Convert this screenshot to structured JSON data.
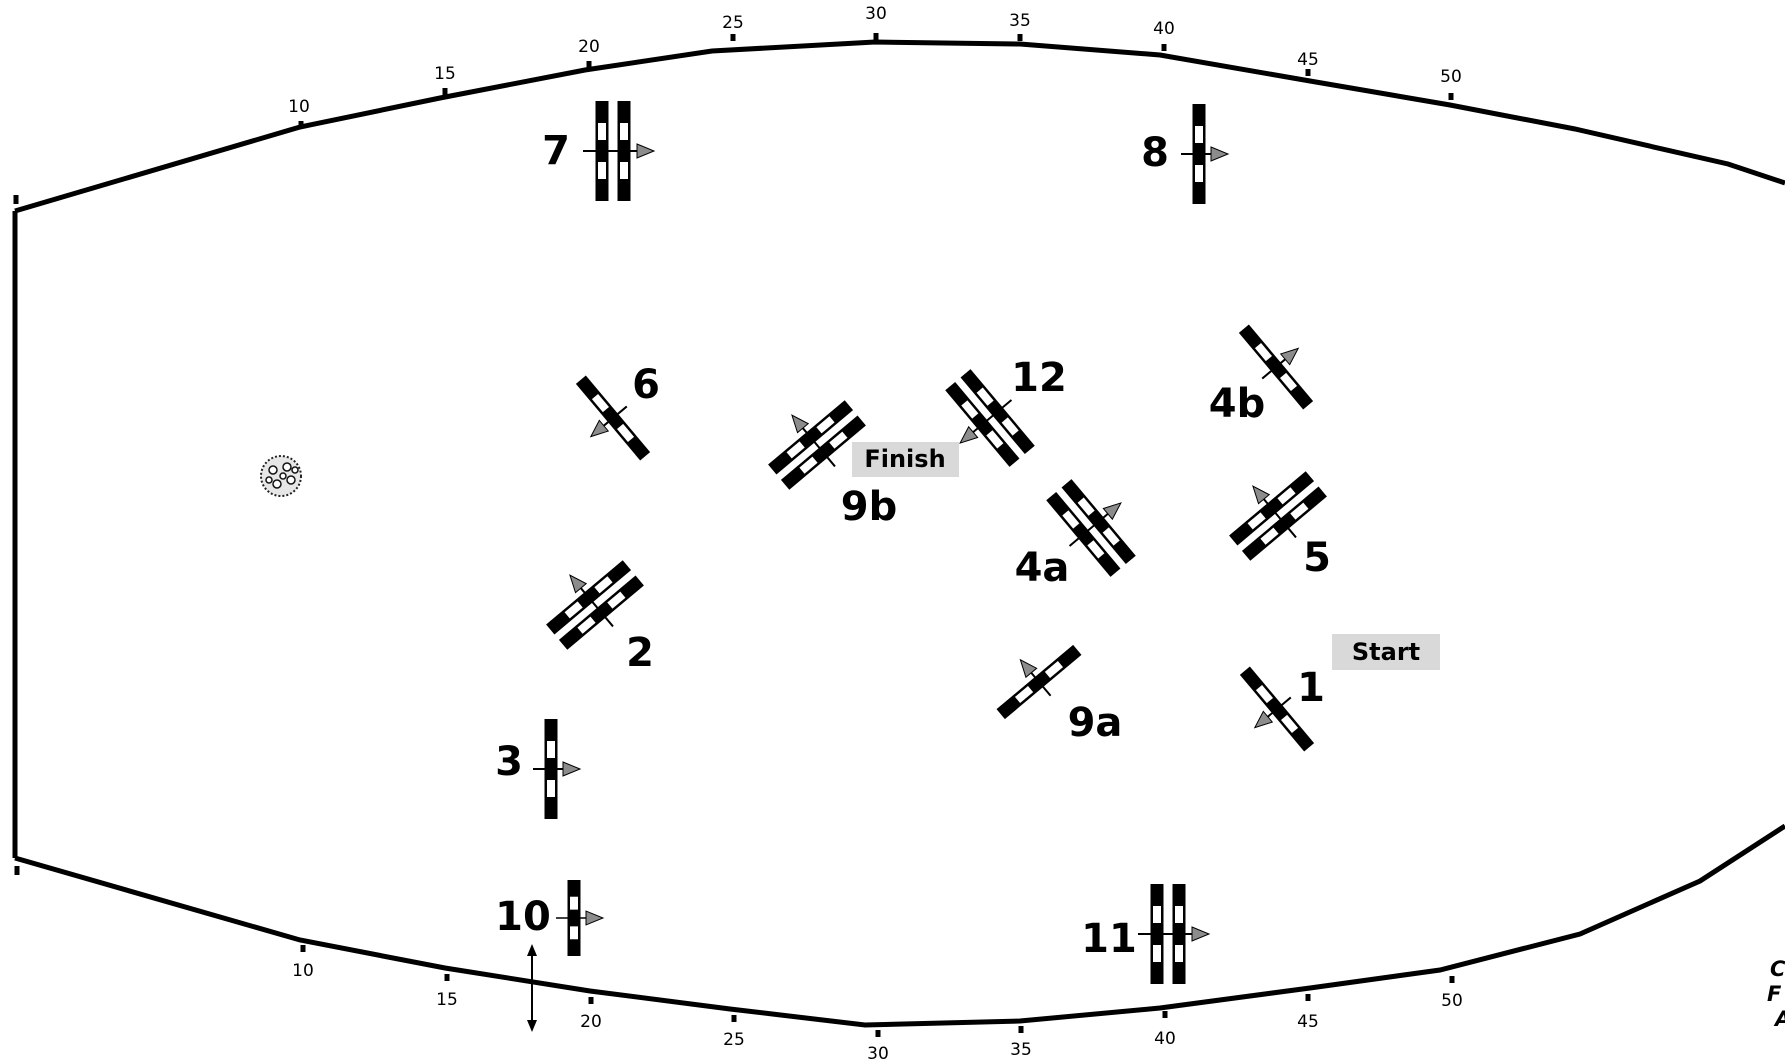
{
  "arena": {
    "top_ticks": [
      "10",
      "15",
      "20",
      "25",
      "30",
      "35",
      "40",
      "45",
      "50"
    ],
    "bottom_ticks": [
      "10",
      "15",
      "20",
      "25",
      "30",
      "35",
      "40",
      "45",
      "50"
    ]
  },
  "jumps": {
    "j1": "1",
    "j2": "2",
    "j3": "3",
    "j4a": "4a",
    "j4b": "4b",
    "j5": "5",
    "j6": "6",
    "j7": "7",
    "j8": "8",
    "j9a": "9a",
    "j9b": "9b",
    "j10": "10",
    "j11": "11",
    "j12": "12"
  },
  "tags": {
    "start": "Start",
    "finish": "Finish"
  },
  "corner_text": [
    "C",
    "F",
    "A"
  ],
  "colors": {
    "pole_dark": "#000000",
    "pole_light": "#ffffff",
    "arrow": "#8c8c8c",
    "tag_bg": "#d9d9d9",
    "line": "#000000"
  }
}
